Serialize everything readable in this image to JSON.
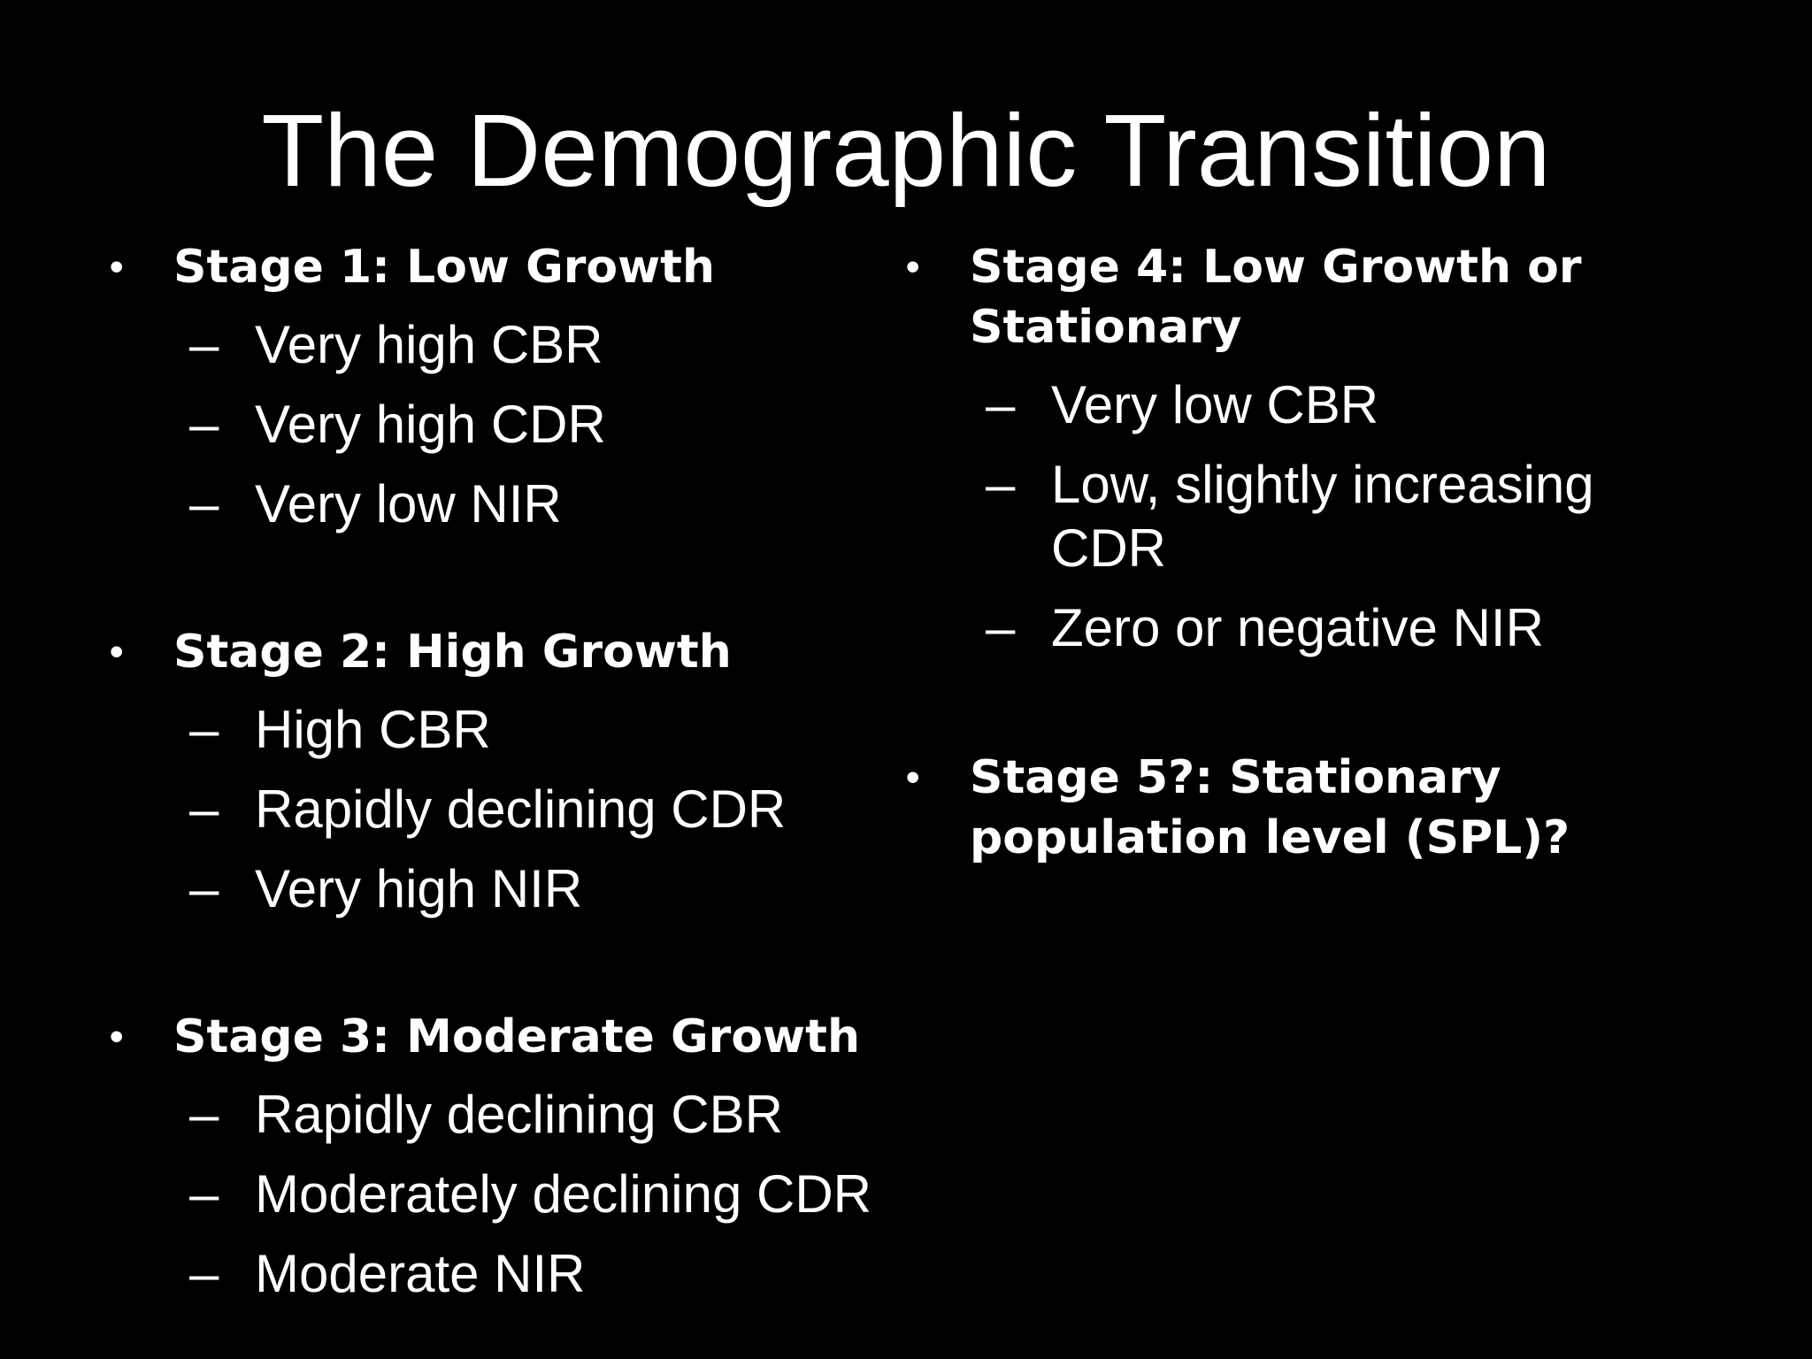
{
  "slide": {
    "title": "The Demographic Transition",
    "bullet_glyph": "•",
    "dash_glyph": "–",
    "stages": [
      {
        "heading": "Stage 1: Low Growth",
        "items": [
          "Very high CBR",
          "Very high CDR",
          "Very low NIR"
        ]
      },
      {
        "heading": "Stage 2: High Growth",
        "items": [
          "High CBR",
          "Rapidly declining CDR",
          "Very high NIR"
        ]
      },
      {
        "heading": "Stage 3: Moderate Growth",
        "items": [
          "Rapidly declining CBR",
          "Moderately declining CDR",
          "Moderate NIR"
        ]
      },
      {
        "heading": "Stage 4: Low Growth or Stationary",
        "items": [
          "Very low CBR",
          "Low, slightly increasing CDR",
          "Zero or negative NIR"
        ]
      },
      {
        "heading": "Stage 5?: Stationary population level (SPL)?",
        "items": []
      }
    ],
    "colors": {
      "background": "#000000",
      "text": "#ffffff"
    }
  }
}
